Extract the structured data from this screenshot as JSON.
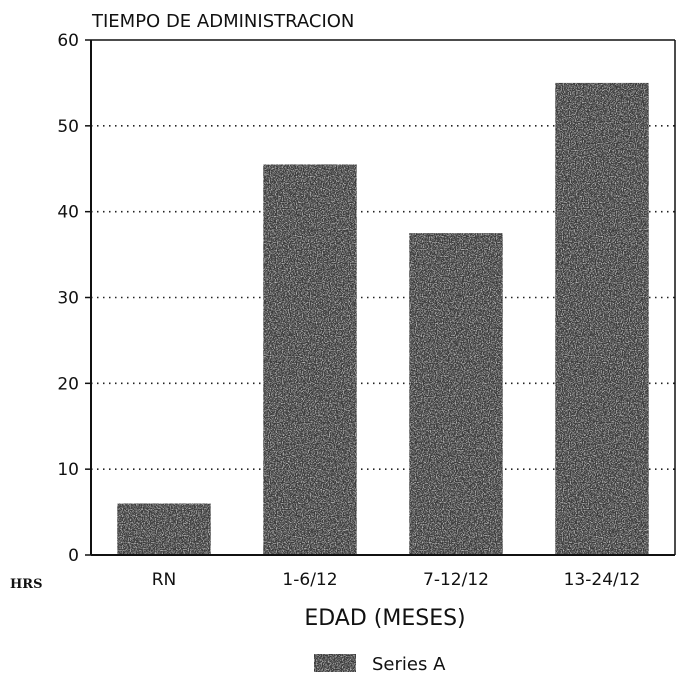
{
  "chart_data": {
    "type": "bar",
    "title": "TIEMPO DE ADMINISTRACION",
    "xlabel": "EDAD (MESES)",
    "ylabel": "HRS",
    "categories": [
      "RN",
      "1-6/12",
      "7-12/12",
      "13-24/12"
    ],
    "series": [
      {
        "name": "Series A",
        "values": [
          6,
          45.5,
          37.5,
          55
        ]
      }
    ],
    "ylim": [
      0,
      60
    ],
    "yticks": [
      0,
      10,
      20,
      30,
      40,
      50,
      60
    ],
    "grid": true,
    "grid_style": "dotted",
    "legend_position": "bottom-center",
    "bar_color": "#3a3a3a"
  }
}
